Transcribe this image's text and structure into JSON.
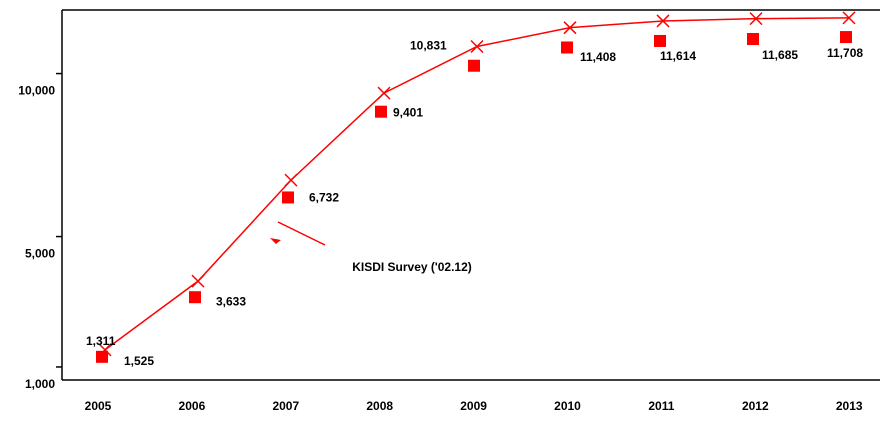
{
  "chart_data": {
    "type": "line",
    "categories": [
      "2005",
      "2006",
      "2007",
      "2008",
      "2009",
      "2010",
      "2011",
      "2012",
      "2013"
    ],
    "series": [
      {
        "color": "#ff0000",
        "marker": "x",
        "values": [
          1525,
          3633,
          6732,
          9401,
          10831,
          11408,
          11614,
          11685,
          11708
        ],
        "value_labels": [
          "1,525",
          "3,633",
          "6,732",
          "9,401",
          "10,831",
          "11,408",
          "11,614",
          "11,685",
          "11,708"
        ]
      },
      {
        "color": "#ff0000",
        "marker": "square",
        "line": false,
        "values": [
          1311,
          3140,
          6200,
          8830,
          10240,
          10800,
          11000,
          11060,
          11120
        ],
        "value_labels": [
          "1,311",
          null,
          null,
          null,
          null,
          null,
          null,
          null,
          null
        ]
      }
    ],
    "ylim": [
      600,
      11950
    ],
    "yticks": [
      {
        "value": 1000,
        "label": "1,000"
      },
      {
        "value": 5000,
        "label": "5,000"
      },
      {
        "value": 10000,
        "label": "10,000"
      }
    ],
    "annotation": {
      "text": "KISDI Survey ('02.12)",
      "color": "#ff00ff"
    }
  }
}
